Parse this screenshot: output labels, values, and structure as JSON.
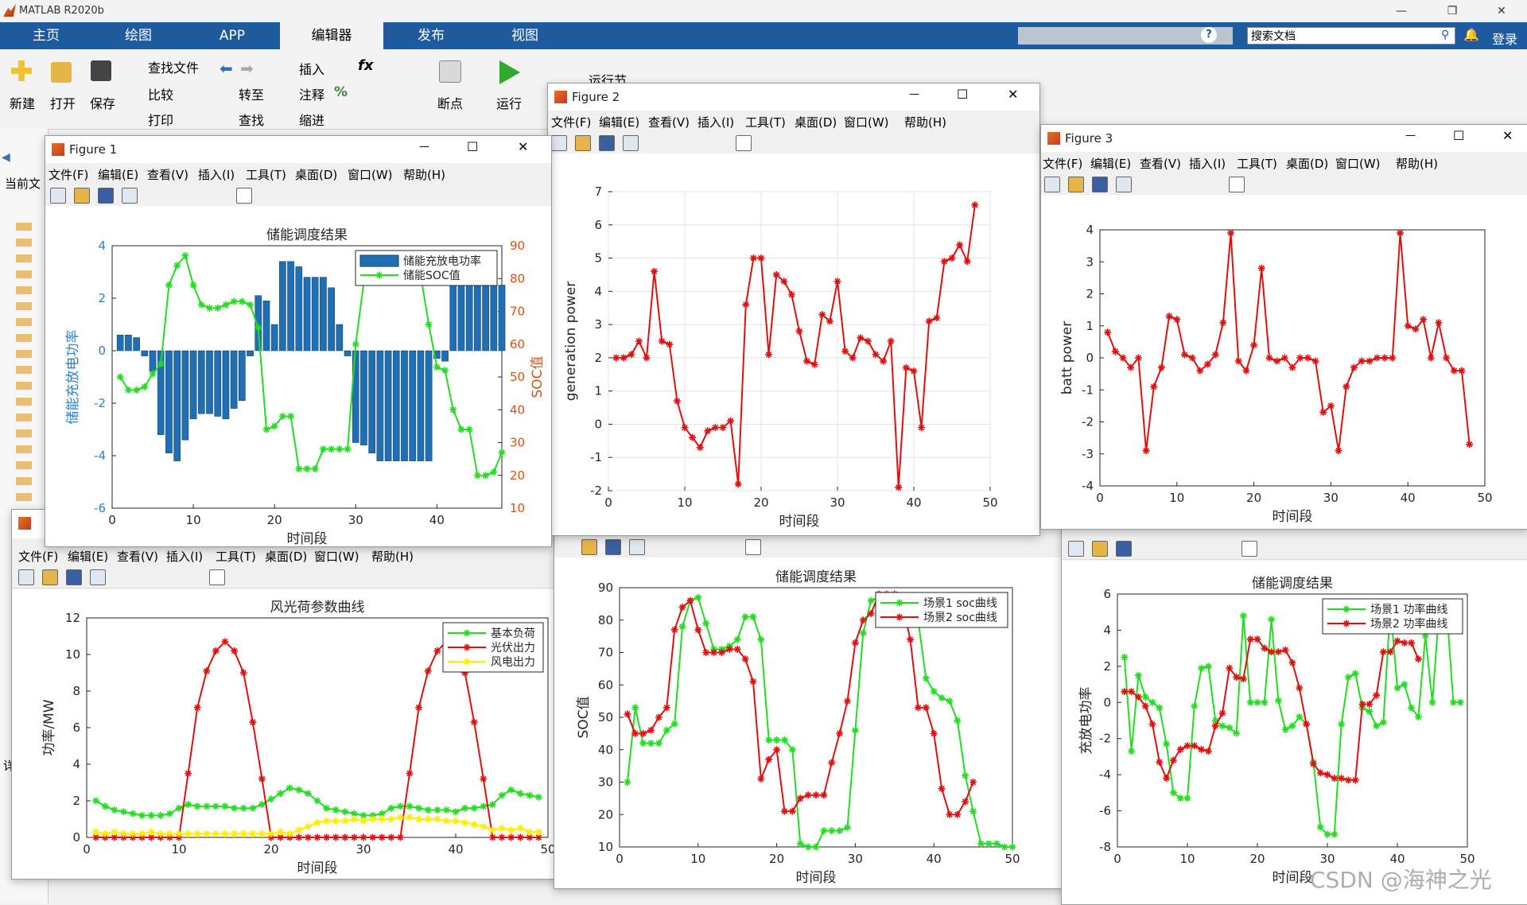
{
  "app": {
    "title": "MATLAB R2020b"
  },
  "tabs": [
    "主页",
    "绘图",
    "APP",
    "编辑器",
    "发布",
    "视图"
  ],
  "search": {
    "placeholder": "搜索文档"
  },
  "login_label": "登录",
  "ribbon": {
    "new_label": "新建",
    "open_label": "打开",
    "save_label": "保存",
    "find_files": "查找文件",
    "compare": "比较",
    "print": "打印",
    "goto": "转至",
    "find": "查找",
    "insert": "插入",
    "comment": "注释",
    "indent": "缩进",
    "breakpoints": "断点",
    "run": "运行",
    "run_section": "运行节"
  },
  "left_panel": {
    "current_folder": "当前文",
    "details": "详"
  },
  "menus": [
    "文件(F)",
    "编辑(E)",
    "查看(V)",
    "插入(I)",
    "工具(T)",
    "桌面(D)",
    "窗口(W)",
    "帮助(H)"
  ],
  "figures": {
    "fig1": {
      "title": "Figure 1"
    },
    "fig2": {
      "title": "Figure 2"
    },
    "fig3": {
      "title": "Figure 3"
    }
  },
  "watermark": "CSDN @海神之光",
  "chart_data": [
    {
      "id": "fig1",
      "type": "bar",
      "title": "储能调度结果",
      "xlabel": "时间段",
      "ylabel": "储能充放电功率",
      "ylabel_right": "SOC值",
      "xlim": [
        0,
        48
      ],
      "ylim": [
        -6,
        4
      ],
      "ylim_right": [
        10,
        90
      ],
      "xticks": [
        0,
        10,
        20,
        30,
        40
      ],
      "yticks": [
        -6,
        -4,
        -2,
        0,
        2,
        4
      ],
      "yticks_right": [
        10,
        20,
        30,
        40,
        50,
        60,
        70,
        80,
        90
      ],
      "legend": {
        "placement": "top-right",
        "entries": [
          "储能充放电功率",
          "储能SOC值"
        ]
      },
      "grid": false,
      "series": [
        {
          "name": "储能充放电功率",
          "kind": "bar",
          "color": "#1f6fb2",
          "values": [
            0.6,
            0.6,
            0.5,
            -0.2,
            -0.8,
            -3.2,
            -3.9,
            -4.2,
            -3.4,
            -2.6,
            -2.4,
            -2.4,
            -2.5,
            -2.6,
            -2.2,
            -1.9,
            -0.2,
            2.1,
            1.9,
            1.0,
            3.4,
            3.4,
            3.2,
            2.8,
            2.8,
            2.8,
            2.4,
            1.0,
            -0.2,
            -3.5,
            -3.6,
            -3.9,
            -4.2,
            -4.2,
            -4.2,
            -4.2,
            -4.2,
            -4.2,
            -4.2,
            -0.3,
            -0.4,
            2.7,
            2.7,
            3.4,
            3.4,
            3.3,
            3.3,
            2.5
          ]
        },
        {
          "name": "储能SOC值",
          "kind": "line",
          "color": "#22dd22",
          "values": [
            50,
            46,
            46,
            47,
            51,
            54,
            78,
            84,
            87,
            78,
            72,
            71,
            71,
            72,
            73,
            73,
            72,
            65,
            34,
            35,
            38,
            38,
            22,
            22,
            22,
            28,
            28,
            28,
            28,
            60,
            79,
            82,
            84,
            85,
            83,
            83,
            82,
            81,
            66,
            53,
            52,
            40,
            34,
            34,
            20,
            20,
            21,
            27,
            31
          ]
        }
      ]
    },
    {
      "id": "fig2",
      "type": "line",
      "title": "",
      "xlabel": "时间段",
      "ylabel": "generation power",
      "xlim": [
        0,
        50
      ],
      "ylim": [
        -2,
        7
      ],
      "xticks": [
        0,
        10,
        20,
        30,
        40,
        50
      ],
      "yticks": [
        -2,
        -1,
        0,
        1,
        2,
        3,
        4,
        5,
        6,
        7
      ],
      "grid": true,
      "series": [
        {
          "color": "#e01010",
          "values": [
            2.0,
            2.0,
            2.1,
            2.5,
            2.0,
            4.6,
            2.5,
            2.4,
            0.7,
            -0.1,
            -0.4,
            -0.7,
            -0.2,
            -0.1,
            -0.1,
            0.1,
            -1.8,
            3.6,
            5.0,
            5.0,
            2.1,
            4.5,
            4.3,
            3.9,
            2.8,
            1.9,
            1.8,
            3.3,
            3.1,
            4.3,
            2.2,
            2.0,
            2.6,
            2.5,
            2.1,
            1.9,
            2.5,
            -1.9,
            1.7,
            1.6,
            -0.1,
            3.1,
            3.2,
            4.9,
            5.0,
            5.4,
            4.9,
            6.6
          ]
        }
      ]
    },
    {
      "id": "fig3",
      "type": "line",
      "title": "",
      "xlabel": "时间段",
      "ylabel": "batt power",
      "xlim": [
        0,
        50
      ],
      "ylim": [
        -4,
        4
      ],
      "xticks": [
        0,
        10,
        20,
        30,
        40,
        50
      ],
      "yticks": [
        -4,
        -3,
        -2,
        -1,
        0,
        1,
        2,
        3,
        4
      ],
      "grid": false,
      "series": [
        {
          "color": "#e01010",
          "values": [
            0.8,
            0.2,
            0.0,
            -0.3,
            0.0,
            -2.9,
            -0.9,
            -0.3,
            1.3,
            1.2,
            0.1,
            0.0,
            -0.4,
            -0.2,
            0.1,
            1.1,
            3.9,
            -0.1,
            -0.4,
            0.4,
            2.8,
            0.0,
            -0.1,
            0.0,
            -0.3,
            0.0,
            0.0,
            -0.1,
            -1.7,
            -1.5,
            -2.9,
            -0.9,
            -0.3,
            -0.1,
            -0.1,
            0.0,
            0.0,
            0.0,
            3.9,
            1.0,
            0.9,
            1.2,
            0.0,
            1.1,
            0.0,
            -0.4,
            -0.4,
            -2.7
          ]
        }
      ]
    },
    {
      "id": "fig4",
      "type": "line",
      "title": "风光荷参数曲线",
      "xlabel": "时间段",
      "ylabel": "功率/MW",
      "xlim": [
        0,
        50
      ],
      "ylim": [
        0,
        12
      ],
      "xticks": [
        0,
        10,
        20,
        30,
        40,
        50
      ],
      "yticks": [
        0,
        2,
        4,
        6,
        8,
        10,
        12
      ],
      "legend": {
        "placement": "top-right",
        "entries": [
          "基本负荷",
          "光伏出力",
          "风电出力"
        ]
      },
      "grid": false,
      "series": [
        {
          "name": "基本负荷",
          "color": "#22dd22",
          "values": [
            2.0,
            1.7,
            1.5,
            1.4,
            1.3,
            1.2,
            1.2,
            1.2,
            1.3,
            1.6,
            1.8,
            1.7,
            1.7,
            1.7,
            1.7,
            1.6,
            1.6,
            1.6,
            1.8,
            2.1,
            2.4,
            2.7,
            2.6,
            2.4,
            2.0,
            1.6,
            1.5,
            1.4,
            1.3,
            1.2,
            1.2,
            1.3,
            1.6,
            1.7,
            1.7,
            1.6,
            1.5,
            1.5,
            1.5,
            1.4,
            1.6,
            1.6,
            1.7,
            1.8,
            2.3,
            2.6,
            2.4,
            2.3,
            2.2
          ]
        },
        {
          "name": "光伏出力",
          "color": "#e01010",
          "values": [
            0,
            0,
            0,
            0,
            0,
            0,
            0,
            0,
            0,
            0,
            3.5,
            7.1,
            9.1,
            10.2,
            10.7,
            10.2,
            9.0,
            6.3,
            3.2,
            0,
            0,
            0,
            0,
            0,
            0,
            0,
            0,
            0,
            0,
            0,
            0,
            0,
            0,
            0,
            3.5,
            7.1,
            9.1,
            10.2,
            10.7,
            10.2,
            9.0,
            6.3,
            3.2,
            0,
            0,
            0,
            0,
            0,
            0
          ]
        },
        {
          "name": "风电出力",
          "color": "#ffee00",
          "values": [
            0.3,
            0.2,
            0.3,
            0.2,
            0.2,
            0.2,
            0.3,
            0.2,
            0.2,
            0.2,
            0.2,
            0.2,
            0.2,
            0.2,
            0.2,
            0.2,
            0.2,
            0.2,
            0.2,
            0.2,
            0.3,
            0.2,
            0.4,
            0.6,
            0.8,
            0.9,
            0.9,
            0.9,
            1.0,
            0.9,
            1.0,
            1.0,
            1.0,
            1.1,
            1.1,
            1.0,
            1.0,
            1.0,
            0.9,
            0.9,
            0.8,
            0.7,
            0.6,
            0.4,
            0.5,
            0.4,
            0.5,
            0.3,
            0.3
          ]
        }
      ]
    },
    {
      "id": "fig5",
      "type": "line",
      "title": "储能调度结果",
      "xlabel": "时间段",
      "ylabel": "SOC值",
      "xlim": [
        0,
        50
      ],
      "ylim": [
        10,
        90
      ],
      "xticks": [
        0,
        10,
        20,
        30,
        40,
        50
      ],
      "yticks": [
        10,
        20,
        30,
        40,
        50,
        60,
        70,
        80,
        90
      ],
      "legend": {
        "placement": "top-right",
        "entries": [
          "场景1 soc曲线",
          "场景2 soc曲线"
        ]
      },
      "grid": false,
      "series": [
        {
          "name": "场景1 soc曲线",
          "color": "#22dd22",
          "values": [
            30,
            53,
            42,
            42,
            42,
            46,
            48,
            78,
            86,
            87,
            79,
            71,
            71,
            72,
            74,
            81,
            81,
            74,
            43,
            43,
            43,
            40,
            11,
            10,
            10,
            15,
            15,
            15,
            16,
            46,
            76,
            86,
            87,
            87,
            86,
            87,
            85,
            80,
            62,
            58,
            56,
            55,
            49,
            32,
            21,
            11,
            11,
            11,
            10,
            10
          ]
        },
        {
          "name": "场景2 soc曲线",
          "color": "#e01010",
          "values": [
            51,
            45,
            45,
            46,
            50,
            53,
            77,
            84,
            86,
            77,
            70,
            70,
            70,
            71,
            71,
            68,
            61,
            31,
            37,
            40,
            21,
            21,
            25,
            26,
            26,
            26,
            36,
            45,
            55,
            73,
            80,
            82,
            88,
            88,
            88,
            85,
            74,
            53,
            53,
            45,
            28,
            20,
            20,
            24,
            30
          ]
        }
      ]
    },
    {
      "id": "fig6",
      "type": "line",
      "title": "储能调度结果",
      "xlabel": "时间段",
      "ylabel": "充放电功率",
      "xlim": [
        0,
        50
      ],
      "ylim": [
        -8,
        6
      ],
      "xticks": [
        0,
        10,
        20,
        30,
        40,
        50
      ],
      "yticks": [
        -8,
        -6,
        -4,
        -2,
        0,
        2,
        4,
        6
      ],
      "legend": {
        "placement": "top-right",
        "entries": [
          "场景1 功率曲线",
          "场景2 功率曲线"
        ]
      },
      "grid": false,
      "series": [
        {
          "name": "场景1 功率曲线",
          "color": "#22dd22",
          "values": [
            2.5,
            -2.7,
            1.5,
            0.3,
            0.0,
            -0.3,
            -2.3,
            -5.0,
            -5.3,
            -5.3,
            -0.2,
            1.9,
            2.0,
            -1.0,
            -1.3,
            -1.4,
            -1.7,
            4.8,
            0.0,
            0.0,
            0.0,
            4.6,
            0.1,
            -1.5,
            -1.3,
            -0.8,
            -1.2,
            -3.3,
            -6.9,
            -7.3,
            -7.3,
            -1.2,
            1.4,
            1.6,
            -0.3,
            -0.5,
            -1.3,
            -1.1,
            5.3,
            0.8,
            1.0,
            -0.3,
            -0.8,
            3.7,
            0.0,
            5.3,
            5.4,
            0.0,
            0.0
          ]
        },
        {
          "name": "场景2 功率曲线",
          "color": "#e01010",
          "values": [
            0.6,
            0.6,
            0.3,
            -0.2,
            -1.2,
            -3.3,
            -4.2,
            -3.2,
            -2.6,
            -2.4,
            -2.4,
            -2.6,
            -2.7,
            -1.3,
            -0.6,
            1.9,
            1.4,
            1.3,
            3.5,
            3.5,
            3.0,
            2.8,
            2.8,
            2.9,
            2.2,
            0.8,
            -1.2,
            -3.4,
            -3.9,
            -4.0,
            -4.2,
            -4.2,
            -4.3,
            -4.3,
            -0.1,
            -0.1,
            0.4,
            2.8,
            2.8,
            3.4,
            3.3,
            3.3,
            2.4
          ]
        }
      ]
    }
  ]
}
